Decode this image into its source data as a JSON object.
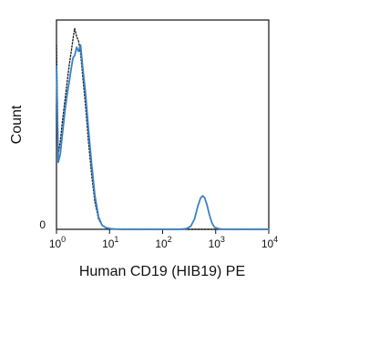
{
  "chart_data": {
    "type": "line",
    "title": "",
    "xlabel": "Human CD19 (HIB19) PE",
    "ylabel": "Count",
    "x_scale": "log",
    "xlim": [
      1,
      10000
    ],
    "x_ticks": [
      {
        "value": 1,
        "base": "10",
        "exp": "0"
      },
      {
        "value": 10,
        "base": "10",
        "exp": "1"
      },
      {
        "value": 100,
        "base": "10",
        "exp": "2"
      },
      {
        "value": 1000,
        "base": "10",
        "exp": "3"
      },
      {
        "value": 10000,
        "base": "10",
        "exp": "4"
      }
    ],
    "y_ticks": [
      {
        "value": 0,
        "label": "0"
      }
    ],
    "ylim": [
      0,
      100
    ],
    "grid": false,
    "legend": "none",
    "series": [
      {
        "style": "solid",
        "color": "#3a82c9",
        "x": [
          1.0,
          1.08,
          1.18,
          1.3,
          1.45,
          1.6,
          1.75,
          1.9,
          2.05,
          2.2,
          2.4,
          2.6,
          2.85,
          3.1,
          3.5,
          4.0,
          4.6,
          5.3,
          6.2,
          7.2,
          8.5,
          10.5,
          13,
          18,
          25,
          40,
          70,
          120,
          200,
          280,
          340,
          400,
          460,
          520,
          570,
          620,
          680,
          760,
          850,
          950,
          1100,
          1300,
          1700,
          3000,
          6000,
          10000
        ],
        "y": [
          78,
          32,
          36,
          46,
          57,
          65,
          71,
          77,
          82,
          83,
          87,
          85,
          88,
          78,
          66,
          48,
          31,
          16,
          6,
          2,
          0.8,
          0.3,
          0.1,
          0,
          0,
          0,
          0,
          0,
          0,
          0.3,
          1.5,
          5,
          11,
          15,
          16,
          15,
          12,
          7,
          3,
          1,
          0.4,
          0.1,
          0,
          0,
          0,
          0
        ]
      },
      {
        "style": "dotted",
        "color": "#222222",
        "x": [
          1.0,
          1.08,
          1.18,
          1.3,
          1.45,
          1.6,
          1.75,
          1.9,
          2.05,
          2.2,
          2.4,
          2.6,
          2.85,
          3.1,
          3.5,
          4.0,
          4.6,
          5.3,
          6.2,
          7.2,
          8.5,
          10.5,
          13,
          18,
          30,
          100,
          1000,
          10000
        ],
        "y": [
          88,
          36,
          42,
          52,
          62,
          71,
          79,
          85,
          91,
          96,
          92,
          90,
          84,
          74,
          60,
          42,
          26,
          13,
          5,
          2,
          0.7,
          0.2,
          0.1,
          0,
          0,
          0,
          0,
          0
        ]
      }
    ]
  }
}
